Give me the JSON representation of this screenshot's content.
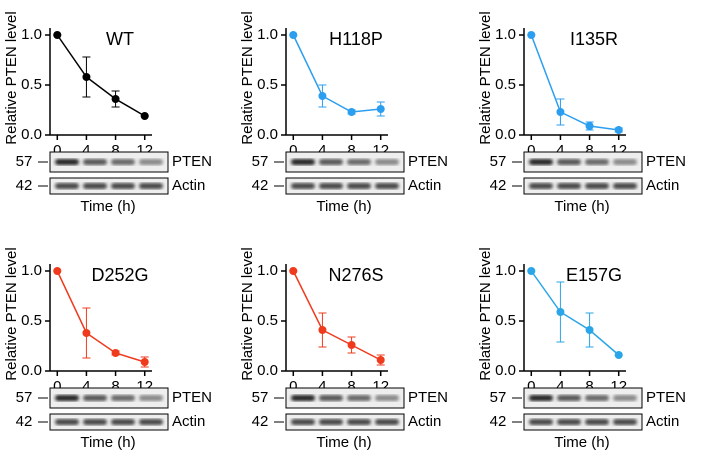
{
  "chart_data": [
    {
      "type": "line",
      "title": "WT",
      "ylabel": "Relative PTEN level",
      "xlabel": "Time (h)",
      "color": "#000000",
      "x": [
        0,
        4,
        8,
        12
      ],
      "values": [
        1.0,
        0.58,
        0.36,
        0.19
      ],
      "errors": [
        0,
        0.2,
        0.08,
        0
      ],
      "xlim": [
        -1,
        13
      ],
      "xticks": [
        0,
        4,
        8,
        12
      ],
      "ylim": [
        0,
        1.05
      ],
      "yticks": [
        {
          "value": 0,
          "label": "0.0"
        },
        0.5,
        {
          "value": 1,
          "label": "1.0"
        }
      ],
      "blots": [
        {
          "marker": "57",
          "protein": "PTEN"
        },
        {
          "marker": "42",
          "protein": "Actin"
        }
      ]
    },
    {
      "type": "line",
      "title": "H118P",
      "ylabel": "Relative PTEN level",
      "xlabel": "Time (h)",
      "color": "#2b9ef0",
      "x": [
        0,
        4,
        8,
        12
      ],
      "values": [
        1.0,
        0.39,
        0.23,
        0.26
      ],
      "errors": [
        0,
        0.11,
        0.02,
        0.07
      ],
      "xlim": [
        -1,
        13
      ],
      "xticks": [
        0,
        4,
        8,
        12
      ],
      "ylim": [
        0,
        1.05
      ],
      "yticks": [
        {
          "value": 0,
          "label": "0.0"
        },
        0.5,
        {
          "value": 1,
          "label": "1.0"
        }
      ],
      "blots": [
        {
          "marker": "57",
          "protein": "PTEN"
        },
        {
          "marker": "42",
          "protein": "Actin"
        }
      ]
    },
    {
      "type": "line",
      "title": "I135R",
      "ylabel": "Relative PTEN level",
      "xlabel": "Time (h)",
      "color": "#2b9ef0",
      "x": [
        0,
        4,
        8,
        12
      ],
      "values": [
        1.0,
        0.23,
        0.09,
        0.05
      ],
      "errors": [
        0,
        0.13,
        0.04,
        0.02
      ],
      "xlim": [
        -1,
        13
      ],
      "xticks": [
        0,
        4,
        8,
        12
      ],
      "ylim": [
        0,
        1.05
      ],
      "yticks": [
        {
          "value": 0,
          "label": "0.0"
        },
        0.5,
        {
          "value": 1,
          "label": "1.0"
        }
      ],
      "blots": [
        {
          "marker": "57",
          "protein": "PTEN"
        },
        {
          "marker": "42",
          "protein": "Actin"
        }
      ]
    },
    {
      "type": "line",
      "title": "D252G",
      "ylabel": "Relative PTEN level",
      "xlabel": "Time (h)",
      "color": "#f03a1e",
      "x": [
        0,
        4,
        8,
        12
      ],
      "values": [
        1.0,
        0.38,
        0.18,
        0.09
      ],
      "errors": [
        0,
        0.25,
        0.02,
        0.05
      ],
      "xlim": [
        -1,
        13
      ],
      "xticks": [
        0,
        4,
        8,
        12
      ],
      "ylim": [
        0,
        1.05
      ],
      "yticks": [
        {
          "value": 0,
          "label": "0.0"
        },
        0.5,
        {
          "value": 1,
          "label": "1.0"
        }
      ],
      "blots": [
        {
          "marker": "57",
          "protein": "PTEN"
        },
        {
          "marker": "42",
          "protein": "Actin"
        }
      ]
    },
    {
      "type": "line",
      "title": "N276S",
      "ylabel": "Relative PTEN level",
      "xlabel": "Time (h)",
      "color": "#f03a1e",
      "x": [
        0,
        4,
        8,
        12
      ],
      "values": [
        1.0,
        0.41,
        0.26,
        0.11
      ],
      "errors": [
        0,
        0.17,
        0.08,
        0.05
      ],
      "xlim": [
        -1,
        13
      ],
      "xticks": [
        0,
        4,
        8,
        12
      ],
      "ylim": [
        0,
        1.05
      ],
      "yticks": [
        {
          "value": 0,
          "label": "0.0"
        },
        0.5,
        {
          "value": 1,
          "label": "1.0"
        }
      ],
      "blots": [
        {
          "marker": "57",
          "protein": "PTEN"
        },
        {
          "marker": "42",
          "protein": "Actin"
        }
      ]
    },
    {
      "type": "line",
      "title": "E157G",
      "ylabel": "Relative PTEN level",
      "xlabel": "Time (h)",
      "color": "#2aa6e8",
      "x": [
        0,
        4,
        8,
        12
      ],
      "values": [
        1.0,
        0.59,
        0.41,
        0.16
      ],
      "errors": [
        0,
        0.3,
        0.17,
        0
      ],
      "xlim": [
        -1,
        13
      ],
      "xticks": [
        0,
        4,
        8,
        12
      ],
      "ylim": [
        0,
        1.05
      ],
      "yticks": [
        {
          "value": 0,
          "label": "0.0"
        },
        0.5,
        {
          "value": 1,
          "label": "1.0"
        }
      ],
      "blots": [
        {
          "marker": "57",
          "protein": "PTEN"
        },
        {
          "marker": "42",
          "protein": "Actin"
        }
      ]
    }
  ]
}
